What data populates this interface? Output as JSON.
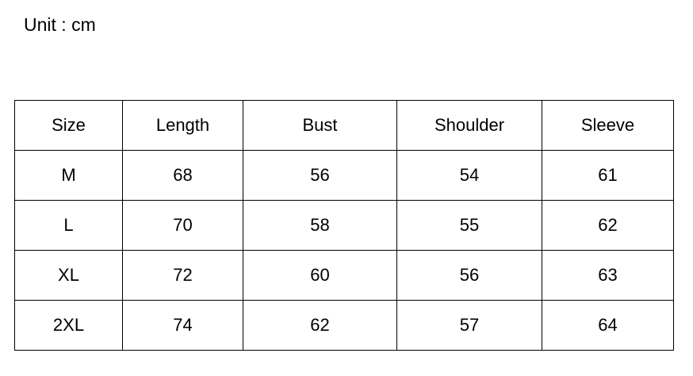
{
  "unit_label": "Unit : cm",
  "table": {
    "headers": [
      "Size",
      "Length",
      "Bust",
      "Shoulder",
      "Sleeve"
    ],
    "rows": [
      [
        "M",
        "68",
        "56",
        "54",
        "61"
      ],
      [
        "L",
        "70",
        "58",
        "55",
        "62"
      ],
      [
        "XL",
        "72",
        "60",
        "56",
        "63"
      ],
      [
        "2XL",
        "74",
        "62",
        "57",
        "64"
      ]
    ]
  }
}
